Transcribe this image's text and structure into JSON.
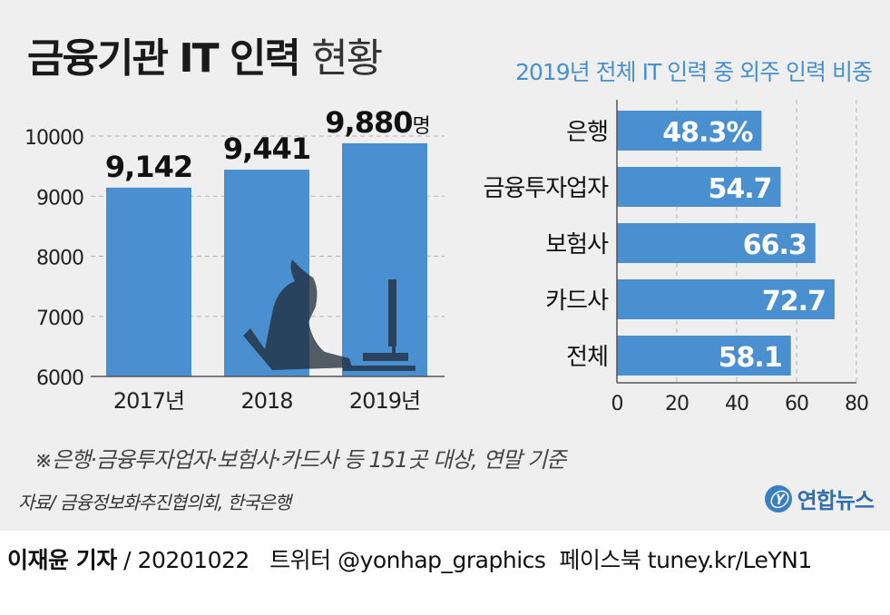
{
  "title_bold": "금융기관 IT 인력",
  "title_light": "현황",
  "subtitle": "2019년 전체 IT 인력 중 외주 인력 비중",
  "note": "※은행·금융투자업자·보험사·카드사 등 151곳 대상, 연말 기준",
  "source": "자료/ 금융정보화추진협의회, 한국은행",
  "logo": {
    "text": "연합뉴스",
    "mark": "Ⓨ"
  },
  "footer": {
    "author": "이재윤 기자",
    "rest": " / 20201022   트위터 @yonhap_graphics  페이스북 tuney.kr/LeYN1"
  },
  "colors": {
    "bar": "#4a90d0",
    "background": "#efefef",
    "accent_text": "#4a90d0"
  },
  "chart_data": [
    {
      "type": "bar",
      "categories": [
        "2017년",
        "2018",
        "2019년"
      ],
      "values": [
        9142,
        9441,
        9880
      ],
      "value_labels": [
        "9,142",
        "9,441",
        "9,880"
      ],
      "unit_label": "명",
      "yticks": [
        6000,
        7000,
        8000,
        9000,
        10000
      ],
      "ytick_labels": [
        "6000",
        "7000",
        "8000",
        "9000",
        "10000"
      ],
      "ylim": [
        6000,
        10000
      ],
      "grid": true
    },
    {
      "type": "bar",
      "orientation": "horizontal",
      "title": "2019년 전체 IT 인력 중 외주 인력 비중",
      "categories": [
        "은행",
        "금융투자업자",
        "보험사",
        "카드사",
        "전체"
      ],
      "values": [
        48.3,
        54.7,
        66.3,
        72.7,
        58.1
      ],
      "value_labels": [
        "48.3%",
        "54.7",
        "66.3",
        "72.7",
        "58.1"
      ],
      "xticks": [
        0,
        20,
        40,
        60,
        80
      ],
      "xtick_labels": [
        "0",
        "20",
        "40",
        "60",
        "80"
      ],
      "xlim": [
        0,
        80
      ],
      "grid": true
    }
  ]
}
